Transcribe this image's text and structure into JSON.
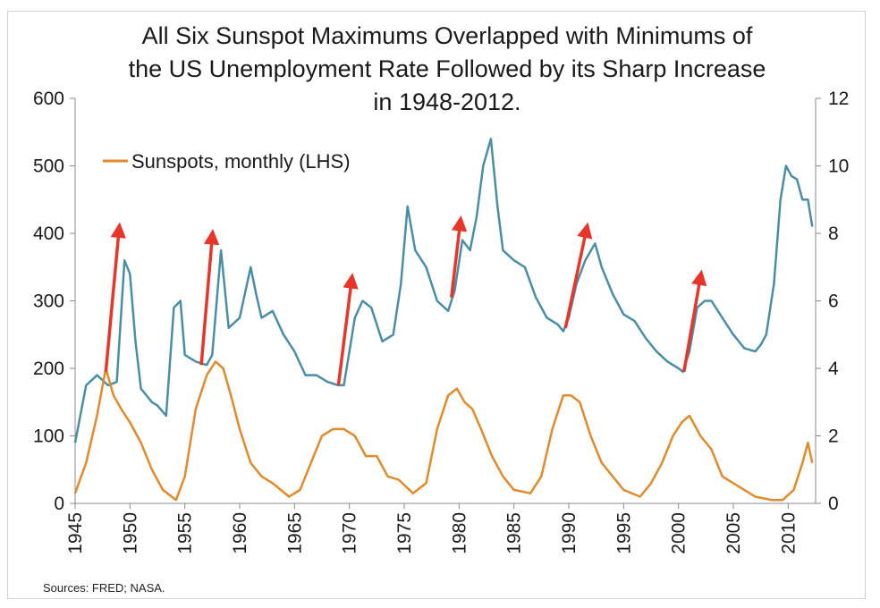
{
  "chart_data": {
    "type": "line",
    "title": "All Six Sunspot Maximums Overlapped with Minimums of the US Unemployment Rate Followed by its Sharp Increase in 1948-2012.",
    "title_lines": [
      "All Six Sunspot Maximums Overlapped with Minimums of",
      "the US Unemployment Rate Followed by its Sharp Increase",
      "in 1948-2012."
    ],
    "source": "Sources:  FRED; NASA.",
    "legend": {
      "placement": "top-left",
      "entries": [
        "Sunspots, monthly (LHS)"
      ]
    },
    "xlim": [
      1945,
      2012.5
    ],
    "ylim_left": [
      0,
      600
    ],
    "ylim_right": [
      0,
      12
    ],
    "x_ticks": [
      "1945",
      "1950",
      "1955",
      "1960",
      "1965",
      "1970",
      "1975",
      "1980",
      "1985",
      "1990",
      "1995",
      "2000",
      "2005",
      "2010"
    ],
    "y_ticks_left": [
      "0",
      "100",
      "200",
      "300",
      "400",
      "500",
      "600"
    ],
    "y_ticks_right": [
      "0",
      "2",
      "4",
      "6",
      "8",
      "10",
      "12"
    ],
    "grid": false,
    "series": [
      {
        "name": "Sunspots, monthly (LHS)",
        "axis": "left",
        "color": "#e08a2c",
        "x": [
          1945.0,
          1946.0,
          1947.0,
          1947.8,
          1948.5,
          1949.2,
          1950.0,
          1951.0,
          1952.0,
          1953.0,
          1954.2,
          1955.0,
          1956.0,
          1957.0,
          1957.8,
          1958.5,
          1959.2,
          1960.0,
          1961.0,
          1962.0,
          1963.0,
          1964.5,
          1965.5,
          1966.5,
          1967.5,
          1968.5,
          1969.5,
          1970.5,
          1971.5,
          1972.5,
          1973.5,
          1974.5,
          1975.8,
          1977.0,
          1978.0,
          1979.0,
          1979.8,
          1980.5,
          1981.2,
          1982.0,
          1983.0,
          1984.0,
          1985.0,
          1986.5,
          1987.5,
          1988.5,
          1989.5,
          1990.2,
          1991.0,
          1992.0,
          1993.0,
          1994.0,
          1995.0,
          1996.5,
          1997.5,
          1998.5,
          1999.5,
          2000.3,
          2001.0,
          2002.0,
          2003.0,
          2004.0,
          2005.0,
          2006.0,
          2007.0,
          2008.5,
          2009.5,
          2010.5,
          2011.3,
          2011.8,
          2012.2
        ],
        "values": [
          15,
          60,
          130,
          200,
          160,
          140,
          120,
          90,
          50,
          20,
          5,
          40,
          140,
          190,
          210,
          200,
          160,
          110,
          60,
          40,
          30,
          10,
          20,
          60,
          100,
          110,
          110,
          100,
          70,
          70,
          40,
          35,
          15,
          30,
          110,
          160,
          170,
          150,
          140,
          110,
          70,
          40,
          20,
          15,
          40,
          110,
          160,
          160,
          150,
          100,
          60,
          40,
          20,
          10,
          30,
          60,
          100,
          120,
          130,
          100,
          80,
          40,
          30,
          20,
          10,
          5,
          5,
          20,
          60,
          90,
          60
        ]
      },
      {
        "name": "",
        "axis": "right",
        "color": "#4a8ea6",
        "x": [
          1945.0,
          1946.0,
          1947.0,
          1948.0,
          1948.8,
          1949.5,
          1950.0,
          1950.5,
          1951.0,
          1952.0,
          1952.5,
          1953.3,
          1954.0,
          1954.6,
          1955.0,
          1956.0,
          1957.0,
          1957.5,
          1958.3,
          1959.0,
          1960.0,
          1961.0,
          1961.5,
          1962.0,
          1963.0,
          1964.0,
          1965.0,
          1966.0,
          1967.0,
          1968.0,
          1969.0,
          1969.5,
          1970.0,
          1970.5,
          1971.2,
          1972.0,
          1973.0,
          1974.0,
          1974.7,
          1975.3,
          1976.0,
          1977.0,
          1978.0,
          1979.0,
          1979.6,
          1980.3,
          1981.0,
          1981.6,
          1982.2,
          1982.9,
          1983.5,
          1984.0,
          1985.0,
          1986.0,
          1987.0,
          1988.0,
          1989.0,
          1989.5,
          1990.0,
          1990.7,
          1991.5,
          1992.4,
          1993.0,
          1994.0,
          1995.0,
          1996.0,
          1997.0,
          1998.0,
          1999.0,
          2000.0,
          2000.4,
          2001.0,
          2001.7,
          2002.4,
          2003.0,
          2004.0,
          2005.0,
          2006.0,
          2007.0,
          2007.5,
          2008.0,
          2008.7,
          2009.3,
          2009.8,
          2010.3,
          2010.8,
          2011.3,
          2011.8,
          2012.2
        ],
        "values": [
          1.8,
          3.5,
          3.8,
          3.5,
          3.6,
          7.2,
          6.8,
          4.8,
          3.4,
          3.0,
          2.9,
          2.6,
          5.8,
          6.0,
          4.4,
          4.2,
          4.1,
          4.4,
          7.5,
          5.2,
          5.5,
          7.0,
          6.2,
          5.5,
          5.7,
          5.0,
          4.5,
          3.8,
          3.8,
          3.6,
          3.5,
          3.5,
          4.5,
          5.5,
          6.0,
          5.8,
          4.8,
          5.0,
          6.5,
          8.8,
          7.5,
          7.0,
          6.0,
          5.7,
          6.3,
          7.8,
          7.5,
          8.5,
          10.0,
          10.8,
          8.8,
          7.5,
          7.2,
          7.0,
          6.1,
          5.5,
          5.3,
          5.1,
          5.5,
          6.5,
          7.2,
          7.7,
          7.0,
          6.2,
          5.6,
          5.4,
          4.9,
          4.5,
          4.2,
          4.0,
          3.9,
          4.5,
          5.8,
          6.0,
          6.0,
          5.5,
          5.0,
          4.6,
          4.5,
          4.7,
          5.0,
          6.5,
          9.0,
          10.0,
          9.7,
          9.6,
          9.0,
          9.0,
          8.2
        ]
      }
    ],
    "annotations": {
      "type": "arrow",
      "color": "#e8352a",
      "arrows": [
        {
          "from": [
            1947.8,
            3.9
          ],
          "to": [
            1949.0,
            8.1
          ]
        },
        {
          "from": [
            1956.5,
            4.1
          ],
          "to": [
            1957.5,
            7.9
          ]
        },
        {
          "from": [
            1969.0,
            3.5
          ],
          "to": [
            1970.2,
            6.6
          ]
        },
        {
          "from": [
            1979.3,
            6.1
          ],
          "to": [
            1980.1,
            8.3
          ]
        },
        {
          "from": [
            1989.7,
            5.2
          ],
          "to": [
            1991.6,
            8.1
          ]
        },
        {
          "from": [
            2000.5,
            3.9
          ],
          "to": [
            2002.0,
            6.7
          ]
        }
      ]
    }
  }
}
